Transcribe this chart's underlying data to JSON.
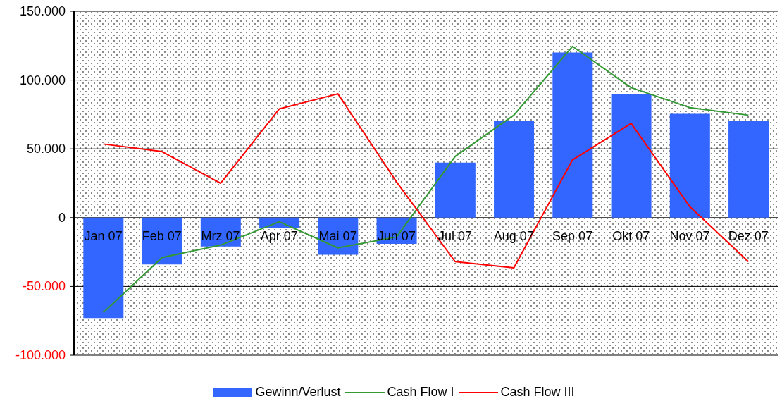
{
  "chart_data": {
    "type": "bar",
    "categories": [
      "Jan 07",
      "Feb 07",
      "Mrz 07",
      "Apr 07",
      "Mai 07",
      "Jun 07",
      "Jul 07",
      "Aug 07",
      "Sep 07",
      "Okt 07",
      "Nov 07",
      "Dez 07"
    ],
    "series": [
      {
        "name": "Gewinn/Verlust",
        "color": "#3366ff",
        "values": [
          -73000,
          -34000,
          -21000,
          -7500,
          -27000,
          -19000,
          40000,
          70500,
          120000,
          90000,
          75500,
          70500
        ]
      },
      {
        "name": "Cash Flow I",
        "type": "line",
        "color": "#339933",
        "values": [
          -69000,
          -29000,
          -20000,
          -3000,
          -22000,
          -14000,
          44500,
          74500,
          124500,
          94500,
          80000,
          74500
        ]
      },
      {
        "name": "Cash Flow III",
        "type": "line",
        "color": "#ff0000",
        "values": [
          53500,
          48000,
          25000,
          79000,
          90000,
          26000,
          -32000,
          -36500,
          42000,
          68500,
          8000,
          -32000
        ]
      }
    ],
    "ylim": [
      -100000,
      150000
    ],
    "yticks": [
      {
        "value": -100000,
        "label": "-100.000"
      },
      {
        "value": -50000,
        "label": "-50.000"
      },
      {
        "value": 0,
        "label": "0"
      },
      {
        "value": 50000,
        "label": "50.000"
      },
      {
        "value": 100000,
        "label": "100.000"
      },
      {
        "value": 150000,
        "label": "150.000"
      }
    ],
    "grid": "y",
    "legend": "bottom",
    "marker": "none",
    "line_style": "solid"
  }
}
